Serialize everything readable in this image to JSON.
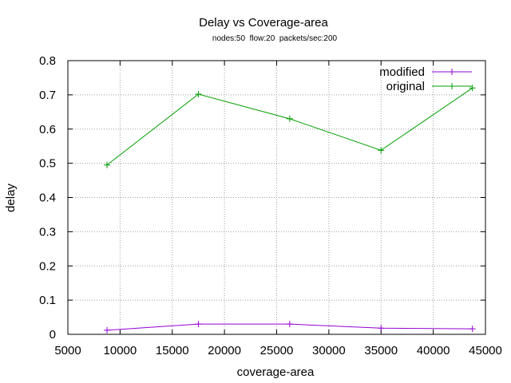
{
  "chart_data": {
    "type": "line",
    "title": "Delay vs Coverage-area",
    "subtitle": "nodes:50  flow:20  packets/sec:200",
    "xlabel": "coverage-area",
    "ylabel": "delay",
    "xlim": [
      5000,
      45000
    ],
    "ylim": [
      0,
      0.8
    ],
    "xticks": [
      5000,
      10000,
      15000,
      20000,
      25000,
      30000,
      35000,
      40000,
      45000
    ],
    "xtick_labels": [
      "5000",
      "10000",
      "15000",
      "20000",
      "25000",
      "30000",
      "35000",
      "40000",
      "45000"
    ],
    "yticks": [
      0,
      0.1,
      0.2,
      0.3,
      0.4,
      0.5,
      0.6,
      0.7,
      0.8
    ],
    "ytick_labels": [
      "0",
      "0.1",
      "0.2",
      "0.3",
      "0.4",
      "0.5",
      "0.6",
      "0.7",
      "0.8"
    ],
    "grid": true,
    "legend_position": "top-right",
    "series": [
      {
        "name": "modified",
        "color": "#9400d3",
        "marker": "plus",
        "x": [
          8750,
          17500,
          26250,
          35000,
          43750
        ],
        "y": [
          0.012,
          0.03,
          0.03,
          0.018,
          0.016
        ]
      },
      {
        "name": "original",
        "color": "#009e00",
        "marker": "plus",
        "x": [
          8750,
          17500,
          26250,
          35000,
          43750
        ],
        "y": [
          0.495,
          0.702,
          0.63,
          0.538,
          0.72
        ]
      }
    ]
  }
}
